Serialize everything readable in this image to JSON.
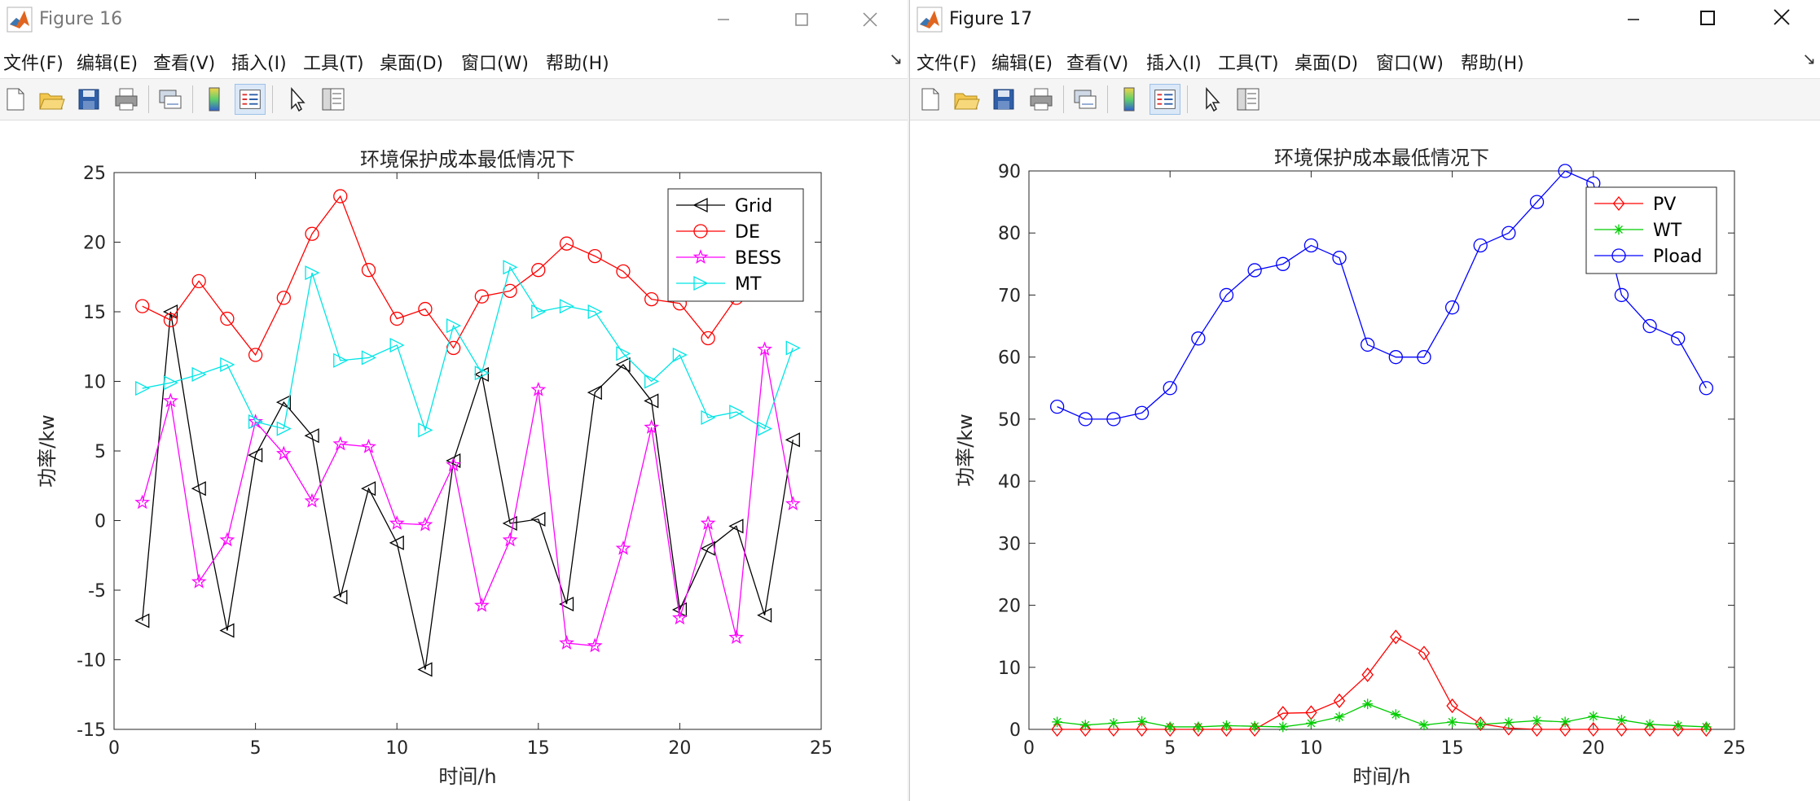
{
  "menu": [
    "文件(F)",
    "编辑(E)",
    "查看(V)",
    "插入(I)",
    "工具(T)",
    "桌面(D)",
    "窗口(W)",
    "帮助(H)"
  ],
  "figures": [
    {
      "window_title": "Figure 16",
      "chart_data": {
        "type": "line",
        "title": "环境保护成本最低情况下",
        "xlabel": "时间/h",
        "ylabel": "功率/kw",
        "xlim": [
          0,
          25
        ],
        "ylim": [
          -15,
          25
        ],
        "xticks": [
          0,
          5,
          10,
          15,
          20,
          25
        ],
        "yticks": [
          -15,
          -10,
          -5,
          0,
          5,
          10,
          15,
          20,
          25
        ],
        "grid": false,
        "legend_position": "top-right",
        "x": [
          1,
          2,
          3,
          4,
          5,
          6,
          7,
          8,
          9,
          10,
          11,
          12,
          13,
          14,
          15,
          16,
          17,
          18,
          19,
          20,
          21,
          22,
          23,
          24
        ],
        "series": [
          {
            "name": "Grid",
            "color": "#000000",
            "marker": "triangle-left",
            "values": [
              -7.2,
              15.0,
              2.3,
              -7.9,
              4.7,
              8.5,
              6.1,
              -5.5,
              2.3,
              -1.6,
              -10.7,
              4.3,
              10.5,
              -0.2,
              0.1,
              -6.0,
              9.2,
              11.2,
              8.6,
              -6.4,
              -2.0,
              -0.4,
              -6.8,
              5.8
            ]
          },
          {
            "name": "DE",
            "color": "#ff0000",
            "marker": "circle",
            "values": [
              15.4,
              14.4,
              17.2,
              14.5,
              11.9,
              16.0,
              20.6,
              23.3,
              18.0,
              14.5,
              15.2,
              12.4,
              16.1,
              16.5,
              18.0,
              19.9,
              19.0,
              17.9,
              15.9,
              15.6,
              13.1,
              16.0,
              null,
              null
            ]
          },
          {
            "name": "BESS",
            "color": "#ff00ff",
            "marker": "pentagram",
            "values": [
              1.3,
              8.6,
              -4.4,
              -1.4,
              7.1,
              4.8,
              1.4,
              5.5,
              5.3,
              -0.2,
              -0.3,
              4.0,
              -6.1,
              -1.4,
              9.4,
              -8.8,
              -9.0,
              -2.0,
              6.7,
              -7.0,
              -0.2,
              -8.4,
              12.3,
              1.2
            ]
          },
          {
            "name": "MT",
            "color": "#00e5e5",
            "marker": "triangle-right",
            "values": [
              9.5,
              9.9,
              10.5,
              11.2,
              7.1,
              6.6,
              17.8,
              11.5,
              11.7,
              12.6,
              6.5,
              14.0,
              10.6,
              18.2,
              15.0,
              15.4,
              15.0,
              12.0,
              10.0,
              11.9,
              7.4,
              7.8,
              6.6,
              12.4
            ]
          }
        ]
      }
    },
    {
      "window_title": "Figure 17",
      "chart_data": {
        "type": "line",
        "title": "环境保护成本最低情况下",
        "xlabel": "时间/h",
        "ylabel": "功率/kw",
        "xlim": [
          0,
          25
        ],
        "ylim": [
          0,
          90
        ],
        "xticks": [
          0,
          5,
          10,
          15,
          20,
          25
        ],
        "yticks": [
          0,
          10,
          20,
          30,
          40,
          50,
          60,
          70,
          80,
          90
        ],
        "grid": false,
        "legend_position": "top-right",
        "x": [
          1,
          2,
          3,
          4,
          5,
          6,
          7,
          8,
          9,
          10,
          11,
          12,
          13,
          14,
          15,
          16,
          17,
          18,
          19,
          20,
          21,
          22,
          23,
          24
        ],
        "series": [
          {
            "name": "PV",
            "color": "#ff0000",
            "marker": "diamond",
            "values": [
              0,
              0,
              0,
              0,
              0,
              0,
              0,
              0,
              2.6,
              2.7,
              4.6,
              8.8,
              14.9,
              12.3,
              3.8,
              0.9,
              0.2,
              0,
              0,
              0,
              0,
              0,
              0,
              0
            ]
          },
          {
            "name": "WT",
            "color": "#00cc00",
            "marker": "asterisk",
            "values": [
              1.2,
              0.7,
              1.0,
              1.3,
              0.4,
              0.4,
              0.6,
              0.5,
              0.4,
              1.0,
              2.0,
              4.1,
              2.4,
              0.7,
              1.2,
              0.8,
              1.1,
              1.4,
              1.2,
              2.1,
              1.5,
              0.8,
              0.6,
              0.4
            ]
          },
          {
            "name": "Pload",
            "color": "#0000ff",
            "marker": "circle",
            "values": [
              52,
              50,
              50,
              51,
              55,
              63,
              70,
              74,
              75,
              78,
              76,
              62,
              60,
              60,
              68,
              78,
              80,
              85,
              90,
              88,
              70,
              65,
              63,
              55
            ]
          }
        ]
      }
    }
  ]
}
